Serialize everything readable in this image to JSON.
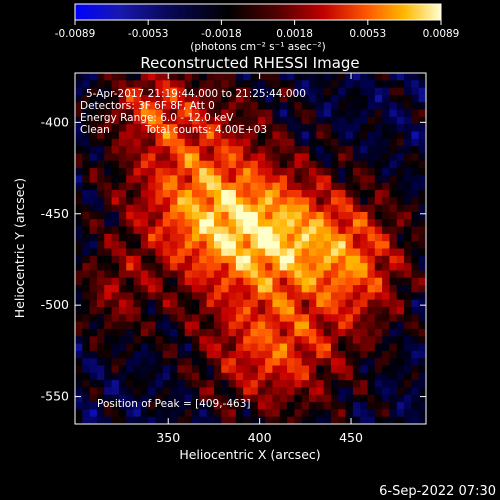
{
  "chart_data": {
    "type": "heatmap",
    "title": "Reconstructed RHESSI Image",
    "xlabel": "Heliocentric X (arcsec)",
    "ylabel": "Heliocentric Y (arcsec)",
    "xlim": [
      299,
      491
    ],
    "ylim": [
      -565,
      -373
    ],
    "x_ticks": [
      350,
      400,
      450
    ],
    "y_ticks": [
      -400,
      -450,
      -500,
      -550
    ],
    "colorbar": {
      "label": "(photons cm⁻² s⁻¹ asec⁻²)",
      "tick_labels": [
        "-0.0089",
        "-0.0053",
        "-0.0018",
        "0.0018",
        "0.0053",
        "0.0089"
      ],
      "range": [
        -0.0089,
        0.0089
      ],
      "colormap": [
        "#0000ff",
        "#1010a0",
        "#00004a",
        "#000000",
        "#5a0000",
        "#c80000",
        "#ff5000",
        "#ffb400",
        "#ffffc8"
      ]
    },
    "annotations": [
      "5-Apr-2017 21:19:44.000 to 21:25:44.000",
      "Detectors: 3F 6F 8F, Att 0",
      "Energy Range: 6.0 - 12.0 keV",
      "Clean",
      "Total counts: 4.00E+03"
    ],
    "peak": {
      "label": "Position of Peak = [409,-463]",
      "x": 409,
      "y": -463
    },
    "timestamp": "6-Sep-2022 07:30"
  }
}
